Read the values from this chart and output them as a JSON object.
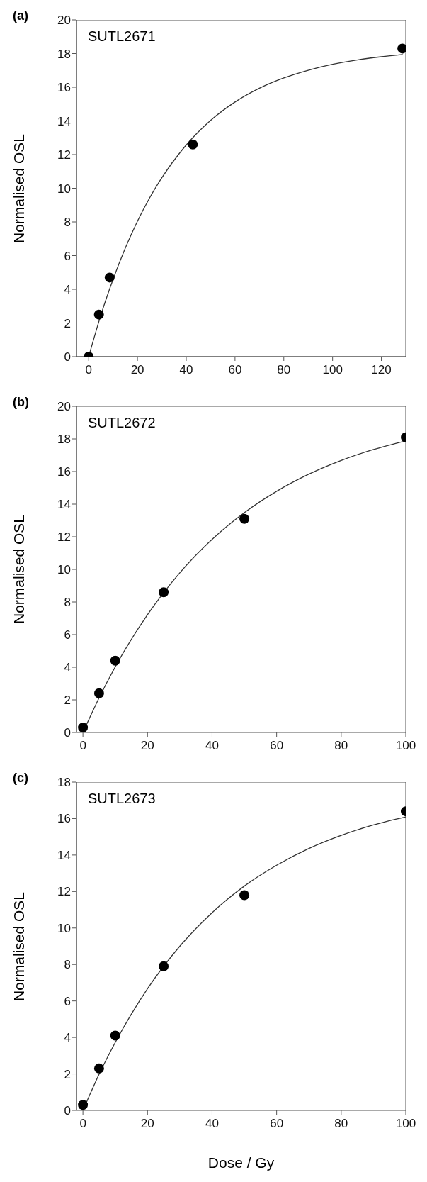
{
  "chart_data": [
    {
      "type": "scatter",
      "title": "(a)",
      "ylabel": "Normalised OSL",
      "annotations": [
        "SUTL2671"
      ],
      "xlim": [
        -5,
        130
      ],
      "xticks": [
        0,
        20,
        40,
        60,
        80,
        100,
        120
      ],
      "ylim": [
        0,
        20
      ],
      "yticks": [
        0,
        2,
        4,
        6,
        8,
        10,
        12,
        14,
        16,
        18,
        20
      ],
      "grid": false,
      "legend": false,
      "series": [
        {
          "type": "line",
          "color": "#333333",
          "marker": "none",
          "x": [
            0,
            5,
            10,
            15,
            20,
            25,
            30,
            40,
            50,
            60,
            70,
            80,
            90,
            100,
            110,
            120,
            128.6
          ],
          "values": [
            0,
            2.47,
            4.59,
            6.44,
            8.04,
            9.43,
            10.63,
            12.57,
            14.03,
            15.12,
            15.94,
            16.55,
            17.01,
            17.36,
            17.62,
            17.81,
            17.94
          ]
        },
        {
          "color": "#000000",
          "marker": "circle",
          "x": [
            0,
            4.2,
            8.6,
            42.7,
            128.6
          ],
          "values": [
            0.0,
            2.5,
            4.7,
            12.6,
            18.3
          ]
        }
      ]
    },
    {
      "type": "scatter",
      "title": "(b)",
      "ylabel": "Normalised OSL",
      "annotations": [
        "SUTL2672"
      ],
      "xlim": [
        -2,
        100
      ],
      "xticks": [
        0,
        20,
        40,
        60,
        80,
        100
      ],
      "ylim": [
        0,
        20
      ],
      "yticks": [
        0,
        2,
        4,
        6,
        8,
        10,
        12,
        14,
        16,
        18,
        20
      ],
      "grid": false,
      "legend": false,
      "series": [
        {
          "type": "line",
          "color": "#333333",
          "marker": "none",
          "x": [
            0,
            5,
            10,
            20,
            30,
            40,
            50,
            60,
            70,
            80,
            90,
            100
          ],
          "values": [
            0,
            2.12,
            4.02,
            7.22,
            9.79,
            11.84,
            13.48,
            14.79,
            15.84,
            16.68,
            17.35,
            17.88
          ]
        },
        {
          "color": "#000000",
          "marker": "circle",
          "x": [
            0,
            5,
            10,
            25,
            50,
            100
          ],
          "values": [
            0.3,
            2.4,
            4.4,
            8.6,
            13.1,
            18.1
          ]
        }
      ]
    },
    {
      "type": "scatter",
      "title": "(c)",
      "xlabel": "Dose / Gy",
      "ylabel": "Normalised OSL",
      "annotations": [
        "SUTL2673"
      ],
      "xlim": [
        -2,
        100
      ],
      "xticks": [
        0,
        20,
        40,
        60,
        80,
        100
      ],
      "ylim": [
        0,
        18
      ],
      "yticks": [
        0,
        2,
        4,
        6,
        8,
        10,
        12,
        14,
        16,
        18
      ],
      "grid": false,
      "legend": false,
      "series": [
        {
          "type": "line",
          "color": "#333333",
          "marker": "none",
          "x": [
            0,
            5,
            10,
            20,
            30,
            40,
            50,
            60,
            70,
            80,
            90,
            100
          ],
          "values": [
            0,
            1.98,
            3.72,
            6.67,
            9.0,
            10.84,
            12.3,
            13.44,
            14.36,
            15.08,
            15.65,
            16.09
          ]
        },
        {
          "color": "#000000",
          "marker": "circle",
          "x": [
            0,
            5,
            10,
            25,
            50,
            100
          ],
          "values": [
            0.3,
            2.3,
            4.1,
            7.9,
            11.8,
            16.4
          ]
        }
      ]
    }
  ]
}
